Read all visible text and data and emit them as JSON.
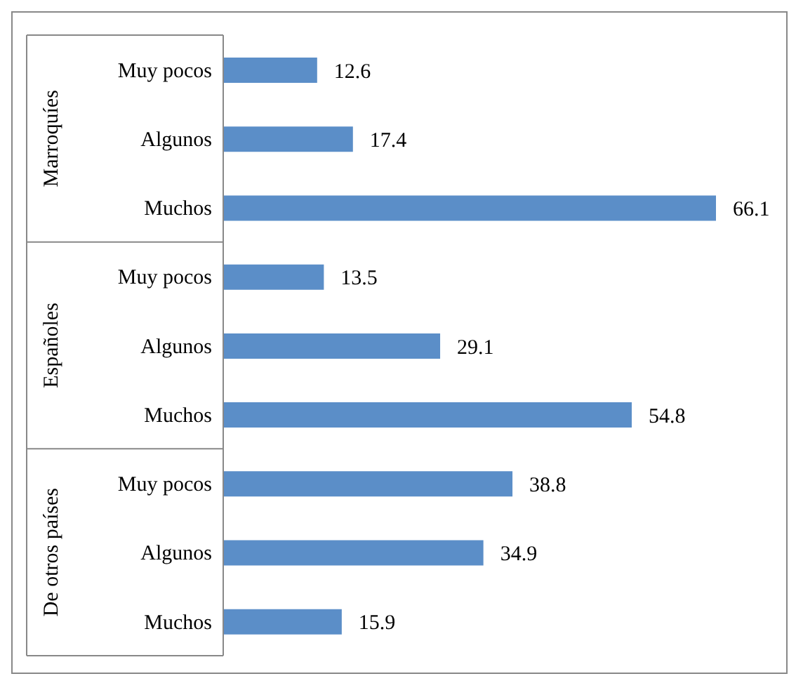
{
  "chart_data": {
    "type": "bar",
    "orientation": "horizontal",
    "categories": [
      "Muy pocos",
      "Algunos",
      "Muchos",
      "Muy pocos",
      "Algunos",
      "Muchos",
      "Muy pocos",
      "Algunos",
      "Muchos"
    ],
    "values": [
      12.6,
      17.4,
      66.1,
      13.5,
      29.1,
      54.8,
      38.8,
      34.9,
      15.9
    ],
    "color": "#5b8ec8",
    "data_labels": true,
    "annotations": [
      "Marroquíes",
      "Españoles",
      "De otros países"
    ]
  }
}
